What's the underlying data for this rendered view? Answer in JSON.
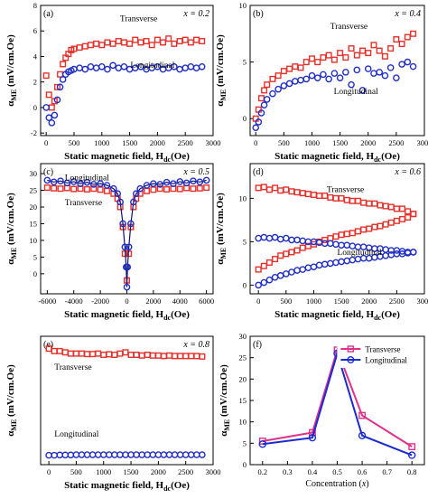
{
  "colors": {
    "transverse": "#e8302a",
    "longitudinal": "#1f2ec4",
    "f_transverse": "#e0318a",
    "f_longitudinal": "#1a2bd0"
  },
  "y_label_base": "α",
  "y_label_sub": "ME",
  "y_label_unit": " (mV/cm.Oe)",
  "x_label_text": "Static magnetic field, H",
  "x_label_sub": "dc",
  "x_label_unit": "(Oe)",
  "f_xlabel": "Concentration (",
  "f_xlabel_var": "x",
  "f_xlabel_close": ")",
  "chart_data": [
    {
      "panel": "(a)",
      "type": "scatter",
      "x_label_value": "x = 0.2",
      "xlim": [
        -100,
        3000
      ],
      "ylim": [
        -2.2,
        8
      ],
      "xticks": [
        0,
        500,
        1000,
        1500,
        2000,
        2500,
        3000
      ],
      "yticks": [
        -2,
        0,
        2,
        4,
        6,
        8
      ],
      "annotations": [
        {
          "text": "Transverse"
        },
        {
          "text": "Longitudinal"
        }
      ],
      "series": [
        {
          "name": "Transverse",
          "marker": "square",
          "x": [
            0,
            50,
            100,
            150,
            200,
            250,
            300,
            350,
            400,
            450,
            500,
            600,
            700,
            800,
            900,
            1000,
            1100,
            1200,
            1300,
            1400,
            1500,
            1600,
            1700,
            1800,
            1900,
            2000,
            2100,
            2200,
            2300,
            2400,
            2500,
            2600,
            2700,
            2800
          ],
          "y": [
            2.5,
            1.0,
            0.0,
            0.5,
            1.6,
            2.6,
            3.4,
            3.9,
            4.2,
            4.5,
            4.6,
            4.7,
            4.8,
            4.9,
            5.0,
            4.9,
            5.1,
            5.0,
            5.2,
            5.1,
            5.0,
            5.3,
            5.1,
            5.2,
            4.9,
            5.3,
            5.1,
            5.4,
            5.0,
            5.2,
            5.3,
            5.1,
            5.3,
            5.2
          ]
        },
        {
          "name": "Longitudinal",
          "marker": "circle",
          "x": [
            0,
            50,
            100,
            150,
            200,
            250,
            300,
            350,
            400,
            450,
            500,
            600,
            700,
            800,
            900,
            1000,
            1100,
            1200,
            1300,
            1400,
            1500,
            1600,
            1700,
            1800,
            1900,
            2000,
            2100,
            2200,
            2300,
            2400,
            2500,
            2600,
            2700,
            2800
          ],
          "y": [
            0.0,
            -0.8,
            -1.2,
            -0.6,
            0.6,
            1.6,
            2.2,
            2.6,
            2.8,
            2.9,
            3.0,
            3.1,
            3.0,
            3.2,
            3.1,
            3.2,
            3.0,
            3.3,
            3.1,
            3.2,
            3.0,
            3.1,
            3.2,
            3.0,
            3.1,
            3.2,
            3.0,
            3.1,
            3.2,
            3.0,
            3.1,
            3.2,
            3.1,
            3.2
          ]
        }
      ]
    },
    {
      "panel": "(b)",
      "type": "scatter",
      "x_label_value": "x = 0.4",
      "xlim": [
        -100,
        3000
      ],
      "ylim": [
        -1.5,
        10
      ],
      "xticks": [
        0,
        500,
        1000,
        1500,
        2000,
        2500,
        3000
      ],
      "yticks": [
        0,
        5,
        10
      ],
      "annotations": [
        {
          "text": "Transverse"
        },
        {
          "text": "Longitudinal"
        }
      ],
      "series": [
        {
          "name": "Transverse",
          "marker": "square",
          "x": [
            0,
            50,
            100,
            150,
            200,
            300,
            400,
            500,
            600,
            700,
            800,
            900,
            1000,
            1100,
            1200,
            1300,
            1400,
            1500,
            1600,
            1700,
            1800,
            1900,
            2000,
            2100,
            2200,
            2300,
            2400,
            2500,
            2600,
            2700,
            2800
          ],
          "y": [
            0.0,
            0.8,
            1.8,
            2.5,
            3.0,
            3.5,
            3.8,
            4.2,
            4.4,
            4.6,
            4.5,
            5.0,
            5.3,
            5.0,
            5.4,
            5.6,
            5.2,
            5.8,
            5.4,
            6.2,
            5.6,
            6.0,
            5.8,
            6.5,
            6.0,
            5.5,
            6.2,
            7.0,
            6.6,
            7.2,
            7.5
          ]
        },
        {
          "name": "Longitudinal",
          "marker": "circle",
          "x": [
            0,
            50,
            100,
            150,
            200,
            300,
            400,
            500,
            600,
            700,
            800,
            900,
            1000,
            1100,
            1200,
            1300,
            1400,
            1500,
            1600,
            1700,
            1800,
            1900,
            2000,
            2100,
            2200,
            2300,
            2400,
            2500,
            2600,
            2700,
            2800
          ],
          "y": [
            -0.8,
            -0.3,
            0.5,
            1.2,
            1.7,
            2.2,
            2.6,
            2.9,
            3.1,
            3.3,
            3.4,
            3.5,
            3.8,
            3.6,
            3.9,
            3.5,
            4.0,
            3.6,
            4.1,
            3.0,
            4.3,
            2.5,
            4.4,
            4.0,
            4.1,
            3.8,
            4.5,
            3.6,
            4.8,
            5.0,
            4.6
          ]
        }
      ]
    },
    {
      "panel": "(c)",
      "type": "scatter",
      "x_label_value": "x = 0.5",
      "xlim": [
        -6500,
        6500
      ],
      "ylim": [
        -6,
        33
      ],
      "xticks": [
        -6000,
        -4000,
        -2000,
        0,
        2000,
        4000,
        6000
      ],
      "yticks": [
        0,
        5,
        10,
        15,
        20,
        25,
        30
      ],
      "annotations": [
        {
          "text": "Longitudinal"
        },
        {
          "text": "Transverse"
        }
      ],
      "series": [
        {
          "name": "Transverse",
          "marker": "square",
          "x": [
            -6000,
            -5500,
            -5000,
            -4500,
            -4000,
            -3500,
            -3000,
            -2500,
            -2000,
            -1500,
            -1000,
            -700,
            -500,
            -300,
            -150,
            0,
            150,
            300,
            500,
            700,
            1000,
            1500,
            2000,
            2500,
            3000,
            3500,
            4000,
            4500,
            5000,
            5500,
            6000
          ],
          "y": [
            25.8,
            25.6,
            25.5,
            25.7,
            25.4,
            25.5,
            25.3,
            25.5,
            25.2,
            24.8,
            24.0,
            22.5,
            20.0,
            14.0,
            6.0,
            -2.0,
            6.0,
            14.0,
            20.0,
            22.5,
            24.0,
            24.8,
            25.2,
            25.5,
            25.3,
            25.5,
            25.4,
            25.7,
            25.5,
            25.6,
            25.8
          ]
        },
        {
          "name": "Longitudinal",
          "marker": "circle",
          "x": [
            -6000,
            -5500,
            -5000,
            -4500,
            -4000,
            -3500,
            -3000,
            -2500,
            -2000,
            -1500,
            -1000,
            -700,
            -500,
            -300,
            -150,
            -50,
            0,
            50,
            150,
            300,
            500,
            700,
            1000,
            1500,
            2000,
            2500,
            3000,
            3500,
            4000,
            4500,
            5000,
            5500,
            6000
          ],
          "y": [
            28.0,
            27.5,
            27.8,
            27.2,
            27.6,
            27.0,
            27.4,
            26.8,
            27.0,
            26.5,
            25.5,
            24.0,
            21.5,
            15.0,
            8.0,
            2.0,
            -4.0,
            2.0,
            8.0,
            15.0,
            21.5,
            24.0,
            25.5,
            26.5,
            27.0,
            26.8,
            27.4,
            27.0,
            27.6,
            27.2,
            27.8,
            27.5,
            28.0
          ]
        }
      ]
    },
    {
      "panel": "(d)",
      "type": "scatter",
      "x_label_value": "x = 0.6",
      "xlim": [
        -150,
        3000
      ],
      "ylim": [
        -1,
        14
      ],
      "xticks": [
        0,
        500,
        1000,
        1500,
        2000,
        2500,
        3000
      ],
      "yticks": [
        0,
        5,
        10
      ],
      "annotations": [
        {
          "text": "Transverse"
        },
        {
          "text": "Longitudinal"
        }
      ],
      "series": [
        {
          "name": "Transverse",
          "marker": "square",
          "x": [
            0,
            100,
            200,
            300,
            400,
            500,
            600,
            700,
            800,
            900,
            1000,
            1100,
            1200,
            1300,
            1400,
            1500,
            1600,
            1700,
            1800,
            1900,
            2000,
            2100,
            2200,
            2300,
            2400,
            2500,
            2600,
            2700,
            2800
          ],
          "y": [
            11.2,
            11.3,
            11.0,
            11.2,
            10.9,
            11.0,
            10.8,
            10.7,
            10.6,
            10.5,
            10.4,
            10.3,
            10.3,
            10.1,
            10.0,
            10.0,
            9.8,
            9.7,
            9.7,
            9.5,
            9.4,
            9.4,
            9.2,
            9.1,
            9.0,
            8.8,
            8.8,
            8.5,
            8.2
          ]
        },
        {
          "name": "Transverse",
          "marker": "square",
          "x": [
            0,
            100,
            200,
            300,
            400,
            500,
            600,
            700,
            800,
            900,
            1000,
            1100,
            1200,
            1300,
            1400,
            1500,
            1600,
            1700,
            1800,
            1900,
            2000,
            2100,
            2200,
            2300,
            2400,
            2500,
            2600,
            2700,
            2800
          ],
          "y": [
            1.8,
            2.2,
            2.6,
            3.0,
            3.4,
            3.6,
            3.8,
            4.0,
            4.3,
            4.5,
            4.7,
            5.0,
            5.2,
            5.4,
            5.6,
            5.8,
            5.9,
            6.0,
            6.2,
            6.4,
            6.5,
            6.7,
            6.8,
            7.0,
            7.2,
            7.4,
            7.6,
            7.8,
            8.2
          ]
        },
        {
          "name": "Longitudinal",
          "marker": "circle",
          "x": [
            0,
            100,
            200,
            300,
            400,
            500,
            600,
            700,
            800,
            900,
            1000,
            1100,
            1200,
            1300,
            1400,
            1500,
            1600,
            1700,
            1800,
            1900,
            2000,
            2100,
            2200,
            2300,
            2400,
            2500,
            2600,
            2700,
            2800
          ],
          "y": [
            5.4,
            5.5,
            5.4,
            5.5,
            5.3,
            5.4,
            5.2,
            5.2,
            5.1,
            5.0,
            5.0,
            4.9,
            4.8,
            4.8,
            4.7,
            4.6,
            4.6,
            4.5,
            4.4,
            4.4,
            4.3,
            4.2,
            4.2,
            4.1,
            4.0,
            4.0,
            3.9,
            3.8,
            3.8
          ]
        },
        {
          "name": "Longitudinal",
          "marker": "circle",
          "x": [
            0,
            100,
            200,
            300,
            400,
            500,
            600,
            700,
            800,
            900,
            1000,
            1100,
            1200,
            1300,
            1400,
            1500,
            1600,
            1700,
            1800,
            1900,
            2000,
            2100,
            2200,
            2300,
            2400,
            2500,
            2600,
            2700,
            2800
          ],
          "y": [
            0.0,
            0.3,
            0.6,
            0.9,
            1.1,
            1.3,
            1.5,
            1.7,
            1.8,
            2.0,
            2.1,
            2.3,
            2.4,
            2.5,
            2.6,
            2.7,
            2.8,
            2.9,
            3.0,
            3.1,
            3.1,
            3.2,
            3.3,
            3.4,
            3.5,
            3.6,
            3.6,
            3.7,
            3.8
          ]
        }
      ]
    },
    {
      "panel": "(e)",
      "type": "scatter",
      "x_label_value": "x = 0.8",
      "xlim": [
        -150,
        3000
      ],
      "ylim": [
        -0.2,
        5
      ],
      "xticks": [
        0,
        500,
        1000,
        1500,
        2000,
        2500,
        3000
      ],
      "yticks": [],
      "annotations": [
        {
          "text": "Transverse"
        },
        {
          "text": "Longitudinal"
        }
      ],
      "series": [
        {
          "name": "Transverse",
          "marker": "square",
          "x": [
            0,
            100,
            200,
            300,
            400,
            500,
            600,
            700,
            800,
            900,
            1000,
            1100,
            1200,
            1300,
            1400,
            1500,
            1600,
            1700,
            1800,
            1900,
            2000,
            2100,
            2200,
            2300,
            2400,
            2500,
            2600,
            2700,
            2800
          ],
          "y": [
            4.5,
            4.4,
            4.4,
            4.35,
            4.3,
            4.3,
            4.3,
            4.28,
            4.28,
            4.3,
            4.25,
            4.27,
            4.25,
            4.3,
            4.35,
            4.25,
            4.25,
            4.22,
            4.25,
            4.22,
            4.22,
            4.2,
            4.22,
            4.2,
            4.2,
            4.2,
            4.2,
            4.2,
            4.18
          ]
        },
        {
          "name": "Longitudinal",
          "marker": "circle",
          "x": [
            0,
            100,
            200,
            300,
            400,
            500,
            600,
            700,
            800,
            900,
            1000,
            1100,
            1200,
            1300,
            1400,
            1500,
            1600,
            1700,
            1800,
            1900,
            2000,
            2100,
            2200,
            2300,
            2400,
            2500,
            2600,
            2700,
            2800
          ],
          "y": [
            0.18,
            0.18,
            0.19,
            0.19,
            0.19,
            0.2,
            0.2,
            0.2,
            0.2,
            0.2,
            0.2,
            0.2,
            0.2,
            0.2,
            0.2,
            0.2,
            0.2,
            0.2,
            0.2,
            0.2,
            0.2,
            0.2,
            0.2,
            0.2,
            0.2,
            0.2,
            0.2,
            0.2,
            0.2
          ]
        }
      ]
    },
    {
      "panel": "(f)",
      "type": "line",
      "xlim": [
        0.15,
        0.85
      ],
      "ylim": [
        0,
        30
      ],
      "xticks": [
        0.2,
        0.3,
        0.4,
        0.5,
        0.6,
        0.7,
        0.8
      ],
      "yticks": [
        0,
        5,
        10,
        15,
        20,
        25,
        30
      ],
      "legend": "top-right",
      "series": [
        {
          "name": "Transverse",
          "marker": "square",
          "x": [
            0.2,
            0.4,
            0.5,
            0.6,
            0.8
          ],
          "y": [
            5.5,
            7.5,
            26.8,
            11.5,
            4.2
          ]
        },
        {
          "name": "Longitudinal",
          "marker": "circle",
          "x": [
            0.2,
            0.4,
            0.5,
            0.6,
            0.8
          ],
          "y": [
            4.8,
            6.3,
            26.0,
            6.8,
            2.2
          ]
        }
      ]
    }
  ]
}
